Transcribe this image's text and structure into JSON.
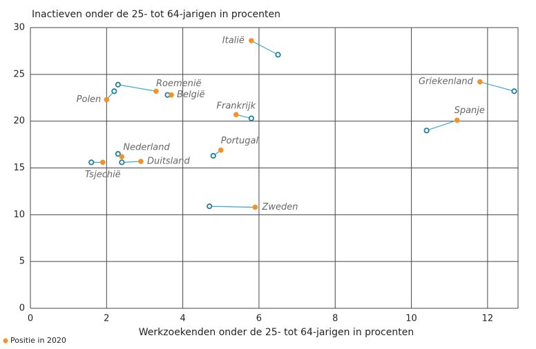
{
  "chart_data": {
    "type": "scatter",
    "title": "Inactieven onder de 25- tot 64-jarigen in procenten",
    "xlabel": "Werkzoekenden onder de 25- tot 64-jarigen in procenten",
    "categories": [
      "Italië",
      "Griekenland",
      "Roemenië",
      "België",
      "Polen",
      "Frankrijk",
      "Spanje",
      "Portugal",
      "Nederland",
      "Duitsland",
      "Tsjechië",
      "Zweden"
    ],
    "series": [
      {
        "name": "Positie in 2020",
        "color": "#f39325",
        "x": [
          5.8,
          11.8,
          3.3,
          3.7,
          2.0,
          5.4,
          11.2,
          5.0,
          2.4,
          2.9,
          1.9,
          5.9
        ],
        "values": [
          28.6,
          24.2,
          23.2,
          22.8,
          22.3,
          20.7,
          20.1,
          16.9,
          16.2,
          15.7,
          15.6,
          10.8
        ]
      },
      {
        "color": "#1a7fa0",
        "x": [
          6.5,
          12.7,
          2.3,
          3.6,
          2.2,
          5.8,
          10.4,
          4.8,
          2.3,
          2.4,
          1.6,
          4.7
        ],
        "values": [
          27.1,
          23.2,
          23.9,
          22.8,
          23.2,
          20.3,
          19.0,
          16.3,
          16.5,
          15.6,
          15.6,
          10.9
        ]
      }
    ],
    "line_color": "#3aa8d0",
    "xlim": [
      0,
      12.8
    ],
    "xticks": [
      0,
      2,
      4,
      6,
      8,
      10,
      12
    ],
    "ylim": [
      0,
      30
    ],
    "yticks": [
      0,
      5,
      10,
      15,
      20,
      25,
      30
    ],
    "grid": true
  }
}
